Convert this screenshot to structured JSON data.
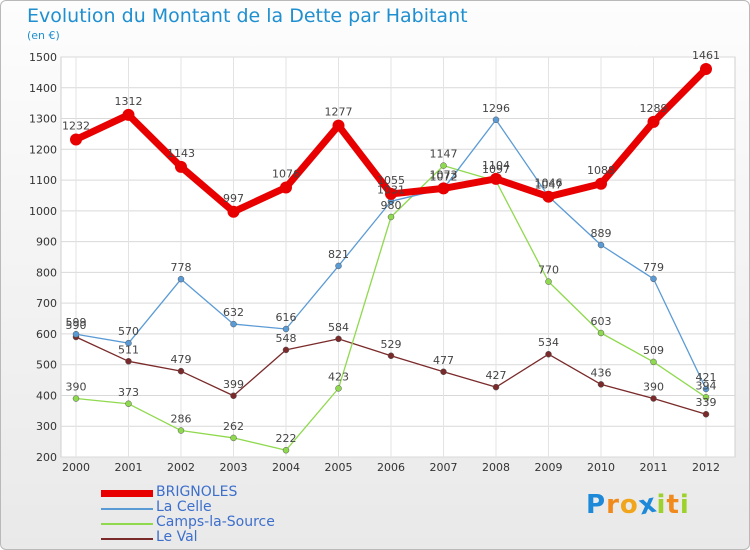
{
  "chart_data": {
    "type": "line",
    "title": "Evolution du Montant de la Dette par Habitant",
    "subtitle": "(en €)",
    "categories": [
      "2000",
      "2001",
      "2002",
      "2003",
      "2004",
      "2005",
      "2006",
      "2007",
      "2008",
      "2009",
      "2010",
      "2011",
      "2012"
    ],
    "ylim": [
      200,
      1500
    ],
    "yticks": [
      200,
      300,
      400,
      500,
      600,
      700,
      800,
      900,
      1000,
      1100,
      1200,
      1300,
      1400,
      1500
    ],
    "grid": true,
    "legend_position": "bottom-left",
    "series": [
      {
        "name": "BRIGNOLES",
        "color": "#e80000",
        "values": [
          1232,
          1312,
          1143,
          997,
          1076,
          1277,
          1055,
          1073,
          1104,
          1046,
          1088,
          1289,
          1461
        ]
      },
      {
        "name": "La Celle",
        "color": "#5b9bd5",
        "values": [
          599,
          570,
          778,
          632,
          616,
          821,
          1031,
          1072,
          1296,
          1047,
          889,
          779,
          421
        ]
      },
      {
        "name": "Camps-la-Source",
        "color": "#8fd94e",
        "values": [
          390,
          373,
          286,
          262,
          222,
          423,
          980,
          1147,
          1097,
          770,
          603,
          509,
          394
        ]
      },
      {
        "name": "Le Val",
        "color": "#7a2a2a",
        "values": [
          590,
          511,
          479,
          399,
          548,
          584,
          529,
          477,
          427,
          534,
          436,
          390,
          339
        ]
      }
    ]
  },
  "logo": {
    "letters": [
      "P",
      "r",
      "o",
      "x",
      "i",
      "t",
      "i"
    ],
    "colors": [
      "#1e88d9",
      "#f08a1c",
      "#f0a51c",
      "#1e88d9",
      "#9dd12b",
      "#f08a1c",
      "#9dd12b"
    ]
  }
}
